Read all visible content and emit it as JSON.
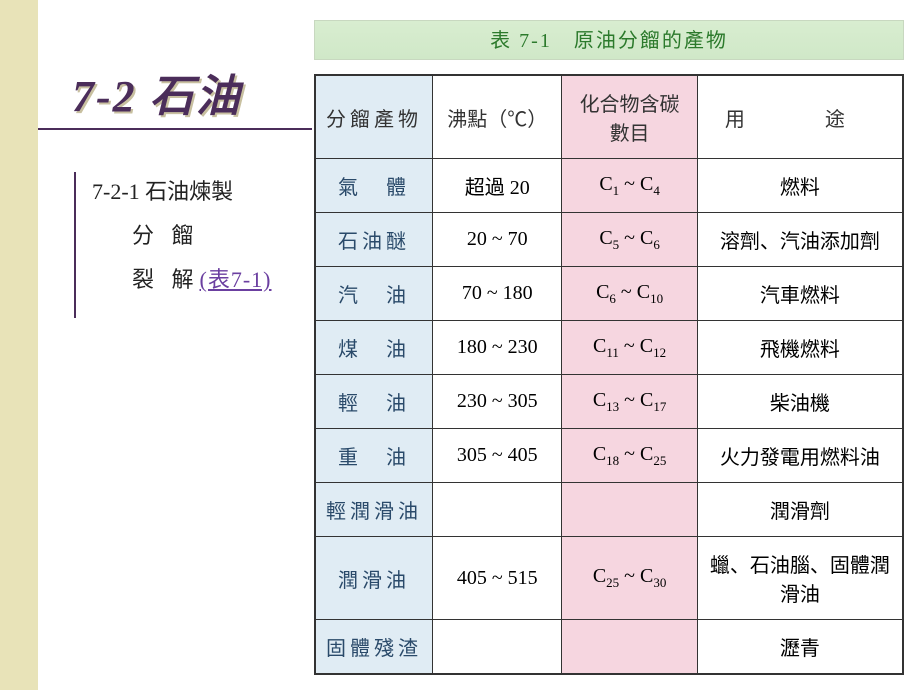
{
  "section": {
    "title": "7-2 石油",
    "item1": "7-2-1 石油煉製",
    "item2": "分 餾",
    "item3_prefix": "裂 解",
    "item3_link": "(表7-1)"
  },
  "table": {
    "caption": "表 7-1　原油分餾的產物",
    "headers": {
      "product": "分餾產物",
      "bp": "沸點（℃）",
      "carbon": "化合物含碳數目",
      "use": "用　途"
    },
    "rows": [
      {
        "product": "氣　體",
        "bp": "超過 20",
        "c_low": "1",
        "c_high": "4",
        "use": "燃料"
      },
      {
        "product": "石油醚",
        "bp": "20 ~ 70",
        "c_low": "5",
        "c_high": "6",
        "use": "溶劑、汽油添加劑"
      },
      {
        "product": "汽　油",
        "bp": "70 ~ 180",
        "c_low": "6",
        "c_high": "10",
        "use": "汽車燃料"
      },
      {
        "product": "煤　油",
        "bp": "180 ~ 230",
        "c_low": "11",
        "c_high": "12",
        "use": "飛機燃料"
      },
      {
        "product": "輕　油",
        "bp": "230 ~ 305",
        "c_low": "13",
        "c_high": "17",
        "use": "柴油機"
      },
      {
        "product": "重　油",
        "bp": "305 ~ 405",
        "c_low": "18",
        "c_high": "25",
        "use": "火力發電用燃料油"
      },
      {
        "product": "輕潤滑油",
        "bp": "",
        "c_low": "",
        "c_high": "",
        "use": "潤滑劑"
      },
      {
        "product": "潤滑油",
        "bp": "405 ~ 515",
        "c_low": "25",
        "c_high": "30",
        "use": "蠟、石油腦、固體潤滑油"
      },
      {
        "product": "固體殘渣",
        "bp": "",
        "c_low": "",
        "c_high": "",
        "use": "瀝青"
      }
    ]
  },
  "colors": {
    "left_band": "#e8e3b8",
    "title_color": "#4b2d5a",
    "caption_bg": "#d8edd0",
    "col1_bg": "#e0ecf4",
    "col3_bg": "#f6d6e0",
    "link_color": "#6b3fa0"
  }
}
